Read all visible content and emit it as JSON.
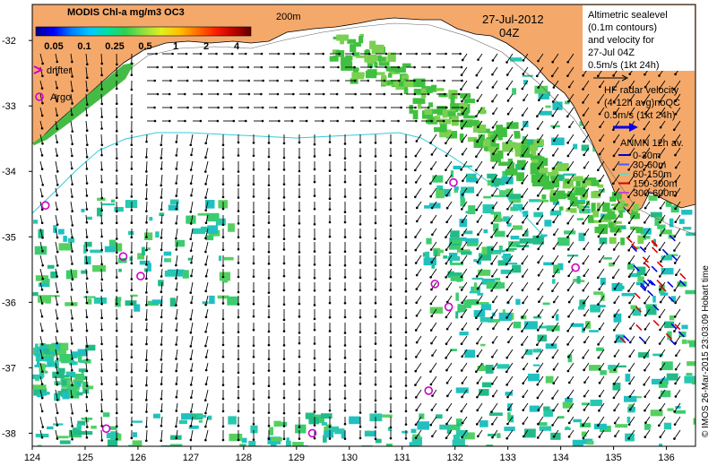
{
  "colorbar": {
    "title": "MODIS Chl-a mg/m3 OC3",
    "ticks": [
      "0.05",
      "0.1",
      "0.25",
      "0.5",
      "1",
      "2",
      "4"
    ],
    "colors": [
      "#00008b",
      "#0000ff",
      "#0080ff",
      "#00c8ff",
      "#00e0a0",
      "#30d050",
      "#90e040",
      "#e0f020",
      "#ffc000",
      "#ff7000",
      "#ff2000",
      "#c00000",
      "#600000"
    ]
  },
  "contour_label": "200m",
  "date": "27-Jul-2012",
  "time": "04Z",
  "legend": {
    "drifter": "drifter",
    "argo": "Argo",
    "altimetry": [
      "Altimetric sealevel",
      "(0.1m contours)",
      "and velocity for",
      "27-Jul 04Z",
      "0.5m/s (1kt 24h)"
    ],
    "hf_radar": [
      "HF radar velocity",
      "(4-12h avg)noQC",
      "0.5m/s (1kt 24h)"
    ],
    "anmn_title": "ANMN 12h av.",
    "anmn_depths": [
      {
        "label": "0-30m",
        "color": "#0000cc"
      },
      {
        "label": "30-60m",
        "color": "#5555ff"
      },
      {
        "label": "60-150m",
        "color": "#55dddd"
      },
      {
        "label": "150-300m",
        "color": "#dd0000"
      },
      {
        "label": "300-600m",
        "color": "#cc44cc"
      }
    ]
  },
  "credit": "© IMOS 26-Mar-2015 23:03:09 Hobart time",
  "x_axis": {
    "ticks": [
      "124",
      "125",
      "126",
      "127",
      "128",
      "129",
      "130",
      "131",
      "132",
      "133",
      "134",
      "135",
      "136"
    ]
  },
  "y_axis": {
    "ticks": [
      "-32",
      "-33",
      "-34",
      "-35",
      "-36",
      "-37",
      "-38"
    ]
  },
  "extent": {
    "lon": [
      124,
      136.55
    ],
    "lat": [
      -38.2,
      -31.45
    ]
  },
  "argo_floats": [
    {
      "lon": 124.25,
      "lat": -34.52
    },
    {
      "lon": 125.72,
      "lat": -35.3
    },
    {
      "lon": 126.05,
      "lat": -35.6
    },
    {
      "lon": 125.4,
      "lat": -37.93
    },
    {
      "lon": 129.3,
      "lat": -38.0
    },
    {
      "lon": 131.97,
      "lat": -34.17
    },
    {
      "lon": 131.62,
      "lat": -35.72
    },
    {
      "lon": 131.88,
      "lat": -36.07
    },
    {
      "lon": 131.5,
      "lat": -37.35
    },
    {
      "lon": 134.28,
      "lat": -35.47
    }
  ]
}
